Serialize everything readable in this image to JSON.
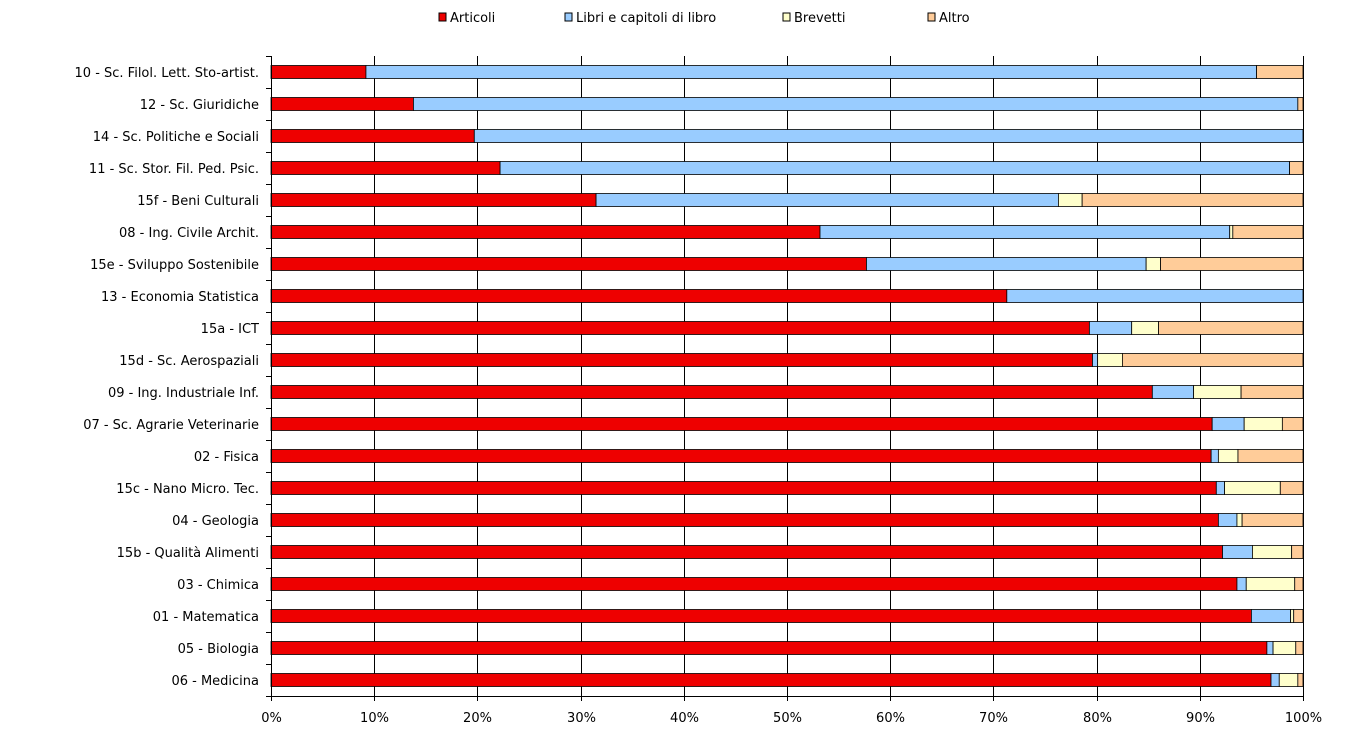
{
  "chart_data": {
    "type": "bar",
    "orientation": "horizontal",
    "stacked": "percent",
    "title": "",
    "xlabel": "",
    "ylabel": "",
    "xlim": [
      0,
      100
    ],
    "x_ticks": [
      "0%",
      "10%",
      "20%",
      "30%",
      "40%",
      "50%",
      "60%",
      "70%",
      "80%",
      "90%",
      "100%"
    ],
    "grid": "vertical",
    "legend_position": "top",
    "categories": [
      "10 - Sc. Filol. Lett. Sto-artist.",
      "12 - Sc. Giuridiche",
      "14 - Sc. Politiche e Sociali",
      "11 - Sc. Stor. Fil. Ped. Psic.",
      "15f - Beni Culturali",
      "08 - Ing. Civile Archit.",
      "15e - Sviluppo Sostenibile",
      "13 - Economia Statistica",
      "15a - ICT",
      "15d - Sc. Aerospaziali",
      "09 - Ing. Industriale Inf.",
      "07 - Sc. Agrarie Veterinarie",
      "02 - Fisica",
      "15c - Nano Micro. Tec.",
      "04 - Geologia",
      "15b - Qualità Alimenti",
      "03 - Chimica",
      "01 - Matematica",
      "05 - Biologia",
      "06 - Medicina"
    ],
    "series": [
      {
        "name": "Articoli",
        "color": "#ee0000",
        "values": [
          9.2,
          13.8,
          19.7,
          22.2,
          31.5,
          53.2,
          57.7,
          71.3,
          79.3,
          79.6,
          85.4,
          91.2,
          91.1,
          91.6,
          91.8,
          92.2,
          93.6,
          95.0,
          96.5,
          96.9
        ]
      },
      {
        "name": "Libri e capitoli di libro",
        "color": "#99ccff",
        "values": [
          86.3,
          85.7,
          80.3,
          76.5,
          44.8,
          39.7,
          27.1,
          28.7,
          4.1,
          0.5,
          4.0,
          3.1,
          0.7,
          0.8,
          1.8,
          2.9,
          0.9,
          3.8,
          0.6,
          0.8
        ]
      },
      {
        "name": "Brevetti",
        "color": "#ffffcc",
        "values": [
          0.0,
          0.0,
          0.0,
          0.0,
          2.3,
          0.3,
          1.4,
          0.0,
          2.6,
          2.4,
          4.6,
          3.7,
          1.9,
          5.4,
          0.5,
          3.8,
          4.7,
          0.3,
          2.2,
          1.8
        ]
      },
      {
        "name": "Altro",
        "color": "#ffcc99",
        "values": [
          4.5,
          0.5,
          0.0,
          1.3,
          21.4,
          6.8,
          13.8,
          0.0,
          14.0,
          17.5,
          6.0,
          2.0,
          6.3,
          2.2,
          5.9,
          1.1,
          0.8,
          0.9,
          0.7,
          0.5
        ]
      }
    ]
  }
}
